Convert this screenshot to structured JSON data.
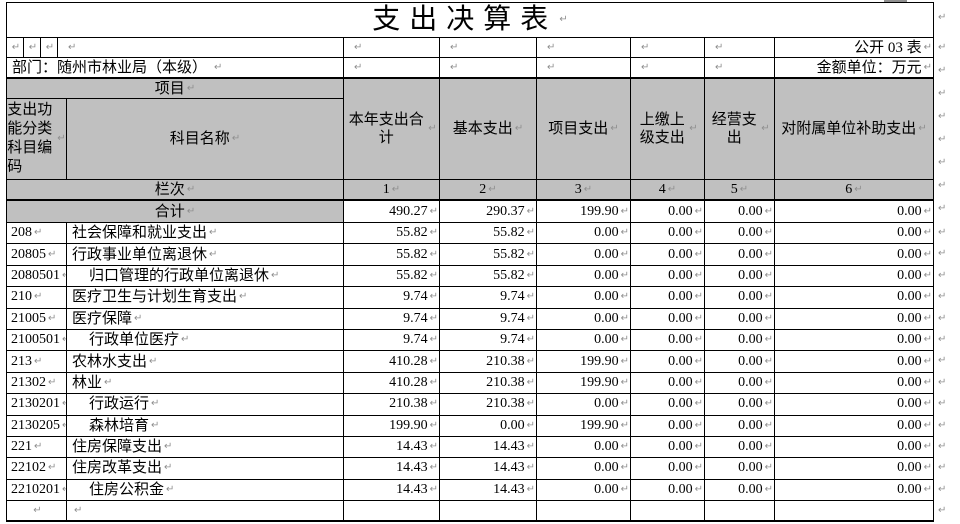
{
  "formatting_mark": "↵",
  "colors": {
    "header_fill": "#c0c0c0",
    "border": "#000000",
    "mark_gray": "#8f8f8f"
  },
  "title": "支出决算表",
  "meta": {
    "sheet_label": "公开 03 表",
    "department": "部门：随州市林业局（本级）",
    "unit": "金额单位：万元"
  },
  "header": {
    "project": "项目",
    "code": "支出功能分类科目编码",
    "subject": "科目名称",
    "columns": [
      "本年支出合计",
      "基本支出",
      "项目支出",
      "上缴上级支出",
      "经营支出",
      "对附属单位补助支出"
    ],
    "lanci": "栏次",
    "column_numbers": [
      "1",
      "2",
      "3",
      "4",
      "5",
      "6"
    ]
  },
  "total_row": {
    "label": "合计",
    "values": [
      "490.27",
      "290.37",
      "199.90",
      "0.00",
      "0.00",
      "0.00"
    ]
  },
  "rows": [
    {
      "code": "208",
      "name": "社会保障和就业支出",
      "indent": false,
      "values": [
        "55.82",
        "55.82",
        "0.00",
        "0.00",
        "0.00",
        "0.00"
      ]
    },
    {
      "code": "20805",
      "name": "行政事业单位离退休",
      "indent": false,
      "values": [
        "55.82",
        "55.82",
        "0.00",
        "0.00",
        "0.00",
        "0.00"
      ]
    },
    {
      "code": "2080501",
      "name": "归口管理的行政单位离退休",
      "indent": true,
      "values": [
        "55.82",
        "55.82",
        "0.00",
        "0.00",
        "0.00",
        "0.00"
      ]
    },
    {
      "code": "210",
      "name": "医疗卫生与计划生育支出",
      "indent": false,
      "values": [
        "9.74",
        "9.74",
        "0.00",
        "0.00",
        "0.00",
        "0.00"
      ]
    },
    {
      "code": "21005",
      "name": "医疗保障",
      "indent": false,
      "values": [
        "9.74",
        "9.74",
        "0.00",
        "0.00",
        "0.00",
        "0.00"
      ]
    },
    {
      "code": "2100501",
      "name": "行政单位医疗",
      "indent": true,
      "values": [
        "9.74",
        "9.74",
        "0.00",
        "0.00",
        "0.00",
        "0.00"
      ]
    },
    {
      "code": "213",
      "name": "农林水支出",
      "indent": false,
      "values": [
        "410.28",
        "210.38",
        "199.90",
        "0.00",
        "0.00",
        "0.00"
      ]
    },
    {
      "code": "21302",
      "name": "林业",
      "indent": false,
      "values": [
        "410.28",
        "210.38",
        "199.90",
        "0.00",
        "0.00",
        "0.00"
      ]
    },
    {
      "code": "2130201",
      "name": "行政运行",
      "indent": true,
      "values": [
        "210.38",
        "210.38",
        "0.00",
        "0.00",
        "0.00",
        "0.00"
      ]
    },
    {
      "code": "2130205",
      "name": "森林培育",
      "indent": true,
      "values": [
        "199.90",
        "0.00",
        "199.90",
        "0.00",
        "0.00",
        "0.00"
      ]
    },
    {
      "code": "221",
      "name": "住房保障支出",
      "indent": false,
      "values": [
        "14.43",
        "14.43",
        "0.00",
        "0.00",
        "0.00",
        "0.00"
      ]
    },
    {
      "code": "22102",
      "name": "住房改革支出",
      "indent": false,
      "values": [
        "14.43",
        "14.43",
        "0.00",
        "0.00",
        "0.00",
        "0.00"
      ]
    },
    {
      "code": "2210201",
      "name": "住房公积金",
      "indent": true,
      "values": [
        "14.43",
        "14.43",
        "0.00",
        "0.00",
        "0.00",
        "0.00"
      ]
    }
  ]
}
